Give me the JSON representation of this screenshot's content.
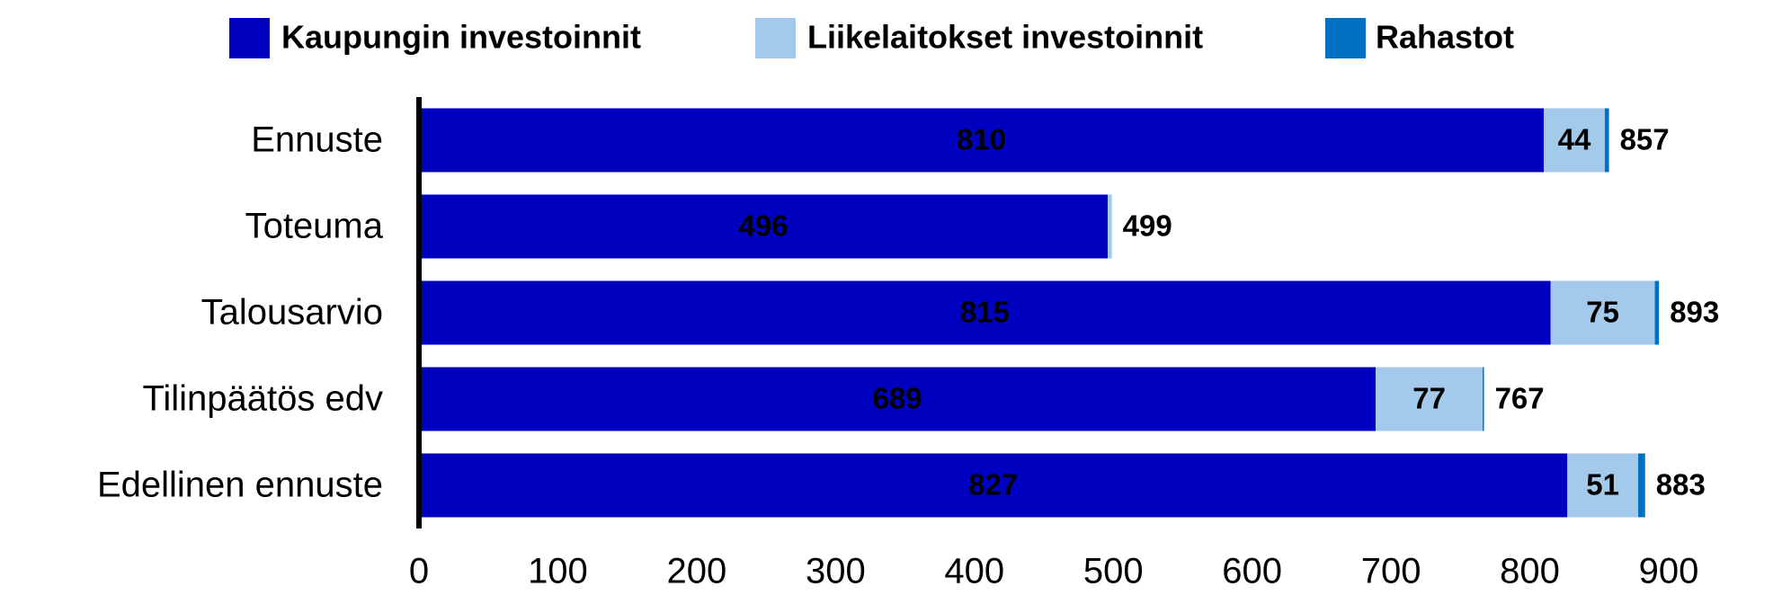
{
  "chart_data": {
    "type": "stacked-bar-horizontal",
    "categories": [
      "Ennuste",
      "Toteuma",
      "Talousarvio",
      "Tilinpäätös edv",
      "Edellinen ennuste"
    ],
    "series": [
      {
        "name": "Kaupungin investoinnit",
        "color": "#0000c0",
        "values": [
          810,
          496,
          815,
          689,
          827
        ]
      },
      {
        "name": "Liikelaitokset investoinnit",
        "color": "#a3c9eb",
        "values": [
          44,
          3,
          75,
          77,
          51
        ]
      },
      {
        "name": "Rahastot",
        "color": "#0070c0",
        "values": [
          3,
          0,
          3,
          1,
          5
        ]
      }
    ],
    "totals": [
      857,
      499,
      893,
      767,
      883
    ],
    "xlim": [
      0,
      900
    ],
    "xticks": [
      0,
      100,
      200,
      300,
      400,
      500,
      600,
      700,
      800,
      900
    ],
    "legend": "top",
    "grid": false
  }
}
